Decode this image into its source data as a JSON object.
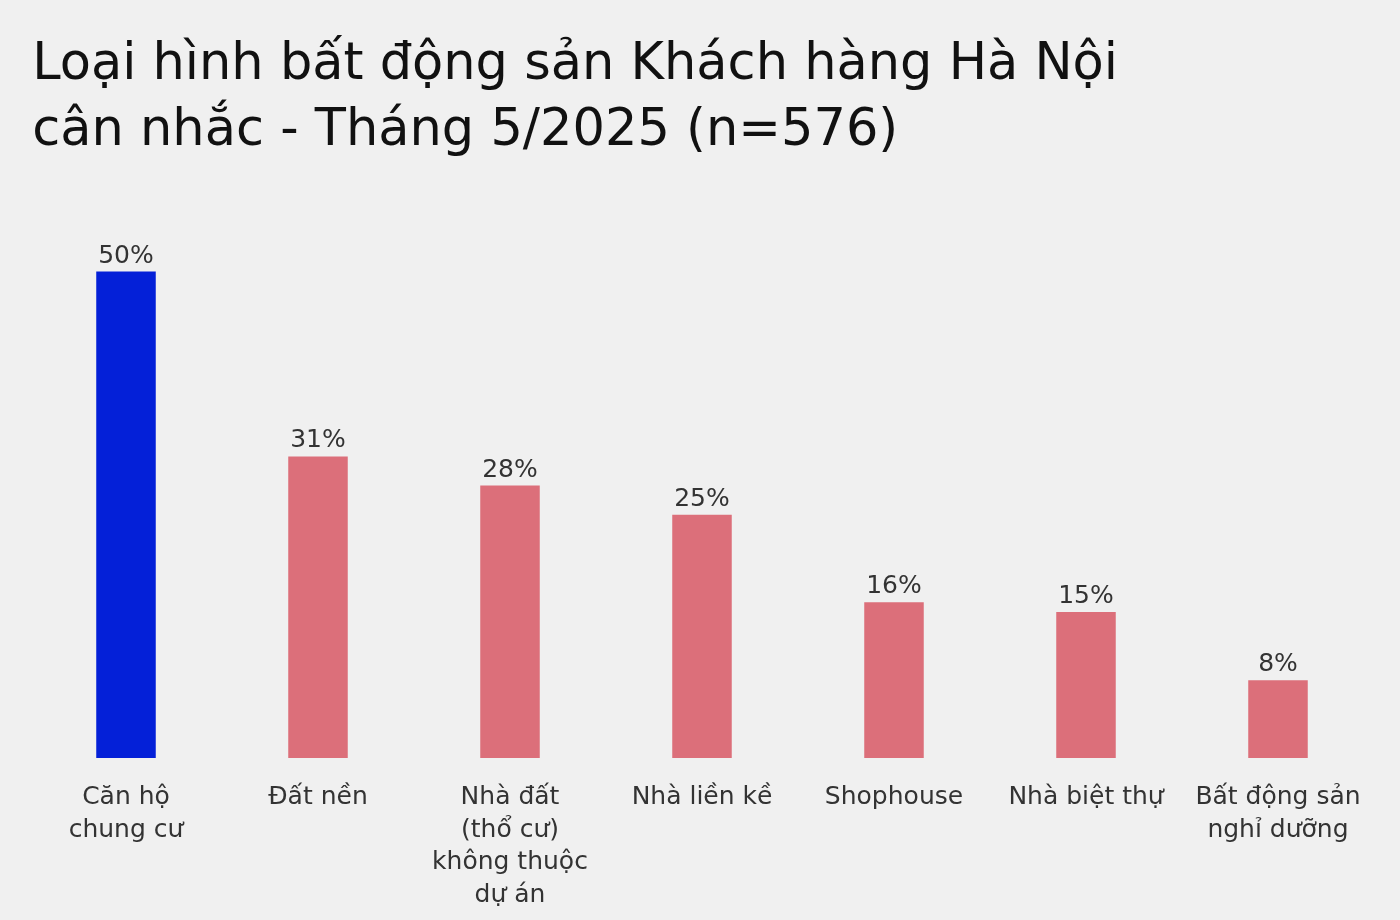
{
  "chart_data": {
    "type": "bar",
    "title": "Loại hình bất động sản Khách hàng Hà Nội\ncân nhắc - Tháng 5/2025 (n=576)",
    "categories": [
      "Căn hộ\nchung cư",
      "Đất nền",
      "Nhà đất\n(thổ cư)\nkhông thuộc\ndự án",
      "Nhà liền kề",
      "Shophouse",
      "Nhà biệt thự",
      "Bất động sản\nnghỉ dưỡng"
    ],
    "values": [
      50,
      31,
      28,
      25,
      16,
      15,
      8
    ],
    "colors": [
      "#0420d8",
      "#dc6f7a",
      "#dc6f7a",
      "#dc6f7a",
      "#dc6f7a",
      "#dc6f7a",
      "#dc6f7a"
    ],
    "value_labels": [
      "50%",
      "31%",
      "28%",
      "25%",
      "16%",
      "15%",
      "8%"
    ]
  }
}
